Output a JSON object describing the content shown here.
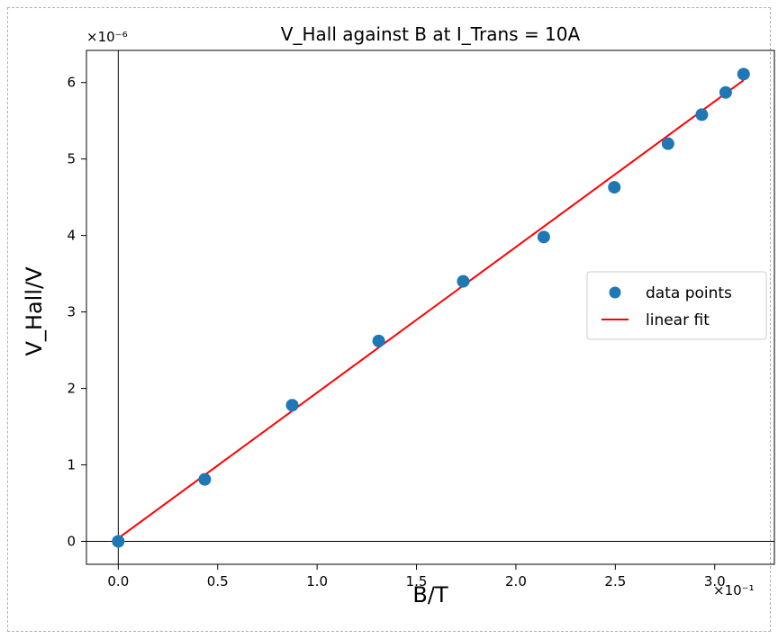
{
  "chart_data": {
    "type": "scatter",
    "title": "V_Hall against B at I_Trans = 10A",
    "xlabel": "B/T",
    "ylabel": "V_Hall/V",
    "x_scale_label": "×10⁻¹",
    "y_scale_label": "×10⁻⁶",
    "xlim": [
      -0.016,
      0.33
    ],
    "ylim": [
      -3e-07,
      6.42e-06
    ],
    "x_ticks": [
      0.0,
      0.05,
      0.1,
      0.15,
      0.2,
      0.25,
      0.3
    ],
    "x_tick_labels": [
      "0.0",
      "0.5",
      "1.0",
      "1.5",
      "2.0",
      "2.5",
      "3.0"
    ],
    "y_ticks": [
      0,
      1e-06,
      2e-06,
      3e-06,
      4e-06,
      5e-06,
      6e-06
    ],
    "y_tick_labels": [
      "0",
      "1",
      "2",
      "3",
      "4",
      "5",
      "6"
    ],
    "grid": false,
    "reference_lines": {
      "x": 0,
      "y": 0
    },
    "legend_position": "center-right",
    "series": [
      {
        "name": "data points",
        "kind": "scatter",
        "color": "#1f77b4",
        "points": [
          [
            0.0,
            0.0
          ],
          [
            0.0435,
            8.1e-07
          ],
          [
            0.0875,
            1.78e-06
          ],
          [
            0.131,
            2.62e-06
          ],
          [
            0.1735,
            3.4e-06
          ],
          [
            0.214,
            3.98e-06
          ],
          [
            0.2495,
            4.63e-06
          ],
          [
            0.2765,
            5.2e-06
          ],
          [
            0.2935,
            5.58e-06
          ],
          [
            0.3055,
            5.87e-06
          ],
          [
            0.3145,
            6.11e-06
          ]
        ]
      },
      {
        "name": "linear fit",
        "kind": "line",
        "color": "#ff0000",
        "points": [
          [
            0.0,
            4e-08
          ],
          [
            0.3145,
            6.03e-06
          ]
        ]
      }
    ]
  }
}
